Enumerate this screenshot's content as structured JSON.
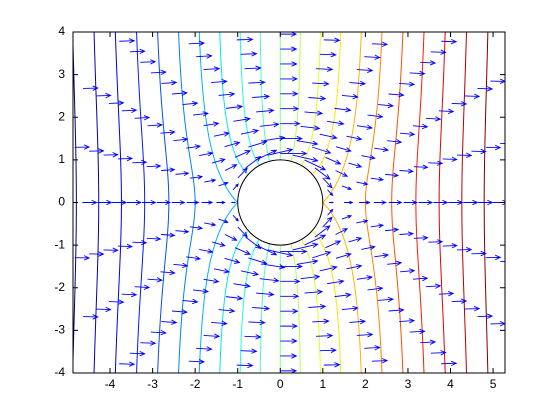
{
  "chart_data": {
    "type": "contour-quiver",
    "xlim": [
      -4.87,
      5.28
    ],
    "ylim": [
      -4,
      4
    ],
    "xticks": [
      -4,
      -3,
      -2,
      -1,
      0,
      1,
      2,
      3,
      4,
      5
    ],
    "yticks": [
      -4,
      -3,
      -2,
      -1,
      0,
      1,
      2,
      3,
      4
    ],
    "cylinder_radius": 1,
    "contour_levels": [
      -5,
      -4.5,
      -4,
      -3.5,
      -3,
      -2.5,
      -2,
      -1.5,
      -1,
      -0.5,
      0,
      0.5,
      1,
      1.5,
      2,
      2.5,
      3,
      3.5,
      4,
      4.5,
      5
    ],
    "colormap": "jet",
    "quiver_radii": [
      1.15,
      1.5,
      1.85,
      2.2,
      2.55,
      2.9,
      3.25,
      3.6,
      3.95,
      4.3,
      4.65,
      5.0,
      5.35,
      5.7
    ],
    "quiver_angles": [
      0,
      15,
      30,
      45,
      60,
      75,
      90,
      105,
      120,
      135,
      150,
      165,
      180,
      195,
      210,
      225,
      240,
      255,
      270,
      285,
      300,
      315,
      330,
      345
    ],
    "quiver_color": "#0000ff"
  }
}
